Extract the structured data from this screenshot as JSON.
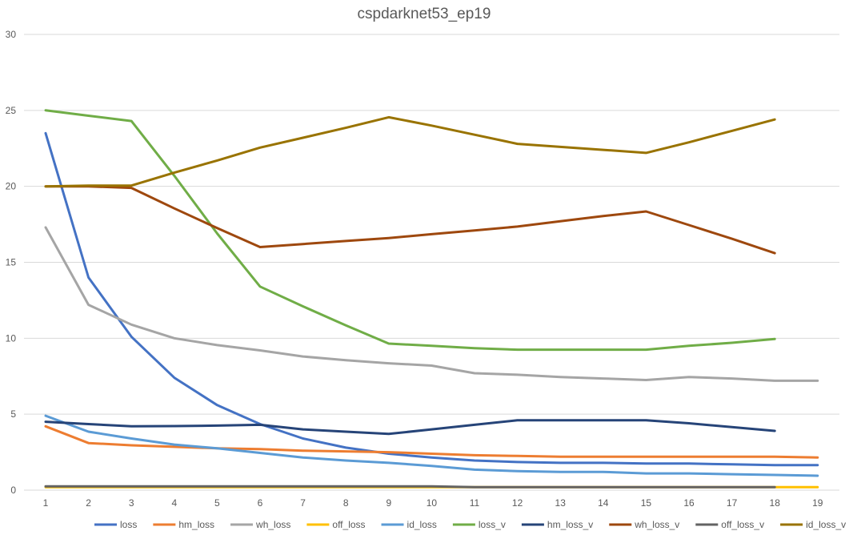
{
  "chart_data": {
    "type": "line",
    "title": "cspdarknet53_ep19",
    "xlabel": "",
    "ylabel": "",
    "categories": [
      "1",
      "2",
      "3",
      "4",
      "5",
      "6",
      "7",
      "8",
      "9",
      "10",
      "11",
      "12",
      "13",
      "14",
      "15",
      "16",
      "17",
      "18",
      "19"
    ],
    "ylim": [
      0,
      30
    ],
    "yticks": [
      0,
      5,
      10,
      15,
      20,
      25,
      30
    ],
    "grid": true,
    "legend_position": "bottom",
    "series": [
      {
        "name": "loss",
        "color": "#4472c4",
        "values": [
          23.5,
          14.0,
          10.1,
          7.4,
          5.6,
          4.35,
          3.4,
          2.8,
          2.4,
          2.15,
          1.95,
          1.85,
          1.8,
          1.8,
          1.75,
          1.75,
          1.7,
          1.65,
          1.65
        ]
      },
      {
        "name": "hm_loss",
        "color": "#ed7d31",
        "values": [
          4.2,
          3.1,
          2.95,
          2.85,
          2.75,
          2.7,
          2.6,
          2.55,
          2.5,
          2.4,
          2.3,
          2.25,
          2.2,
          2.2,
          2.2,
          2.2,
          2.2,
          2.2,
          2.15
        ]
      },
      {
        "name": "wh_loss",
        "color": "#a5a5a5",
        "values": [
          17.3,
          12.2,
          10.9,
          10.0,
          9.55,
          9.2,
          8.8,
          8.55,
          8.35,
          8.2,
          7.7,
          7.6,
          7.45,
          7.35,
          7.25,
          7.45,
          7.35,
          7.2,
          7.2
        ]
      },
      {
        "name": "off_loss",
        "color": "#ffc000",
        "values": [
          0.2,
          0.2,
          0.2,
          0.2,
          0.2,
          0.2,
          0.2,
          0.2,
          0.2,
          0.2,
          0.2,
          0.2,
          0.2,
          0.2,
          0.2,
          0.2,
          0.2,
          0.2,
          0.2
        ]
      },
      {
        "name": "id_loss",
        "color": "#5b9bd5",
        "values": [
          4.9,
          3.85,
          3.4,
          3.0,
          2.75,
          2.45,
          2.15,
          1.95,
          1.8,
          1.6,
          1.35,
          1.25,
          1.2,
          1.2,
          1.1,
          1.1,
          1.05,
          1.0,
          0.95
        ]
      },
      {
        "name": "loss_v",
        "color": "#70ad47",
        "values": [
          25.0,
          24.65,
          24.3,
          20.7,
          16.9,
          13.4,
          12.1,
          10.85,
          9.65,
          9.5,
          9.35,
          9.25,
          9.25,
          9.25,
          9.25,
          9.5,
          9.7,
          9.95,
          null
        ]
      },
      {
        "name": "hm_loss_v",
        "color": "#264478",
        "values": [
          4.5,
          4.35,
          4.2,
          4.22,
          4.25,
          4.3,
          4.0,
          3.85,
          3.7,
          4.0,
          4.3,
          4.6,
          4.6,
          4.6,
          4.6,
          4.4,
          4.15,
          3.9,
          null
        ]
      },
      {
        "name": "wh_loss_v",
        "color": "#9e480e",
        "values": [
          20.0,
          20.0,
          19.9,
          18.55,
          17.25,
          16.0,
          16.2,
          16.4,
          16.6,
          16.85,
          17.1,
          17.35,
          17.7,
          18.05,
          18.35,
          17.45,
          16.55,
          15.6,
          null
        ]
      },
      {
        "name": "off_loss_v",
        "color": "#636363",
        "values": [
          0.25,
          0.25,
          0.25,
          0.25,
          0.25,
          0.25,
          0.25,
          0.25,
          0.25,
          0.25,
          0.2,
          0.2,
          0.2,
          0.2,
          0.2,
          0.2,
          0.2,
          0.2,
          null
        ]
      },
      {
        "name": "id_loss_v",
        "color": "#997300",
        "values": [
          20.0,
          20.05,
          20.05,
          20.9,
          21.7,
          22.55,
          23.2,
          23.85,
          24.55,
          24.0,
          23.4,
          22.8,
          22.6,
          22.4,
          22.2,
          22.9,
          23.65,
          24.4,
          null
        ]
      }
    ]
  }
}
